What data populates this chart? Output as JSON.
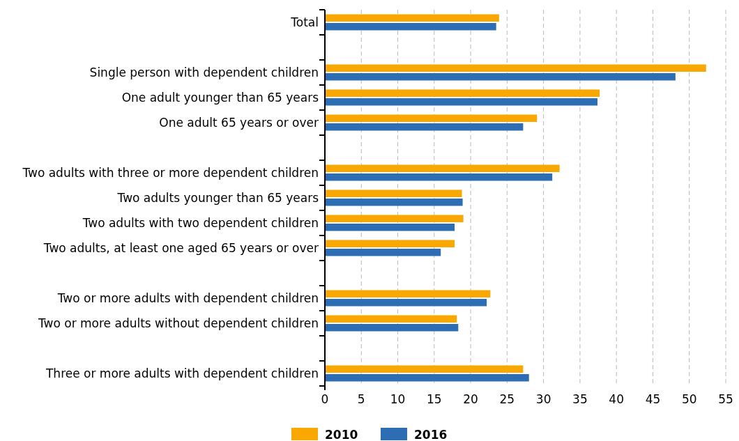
{
  "chart_data": {
    "type": "bar",
    "orientation": "horizontal",
    "categories": [
      "Total",
      null,
      "Single person with dependent children",
      "One adult younger than 65 years",
      "One adult 65 years or over",
      null,
      "Two adults with three or more dependent children",
      "Two adults younger than 65 years",
      "Two adults with two dependent children",
      "Two adults, at least one aged 65 years or over",
      null,
      "Two or more adults with dependent children",
      "Two or more adults without dependent children",
      null,
      "Three or more adults with dependent children"
    ],
    "series": [
      {
        "name": "2010",
        "color": "#f8a800",
        "values": [
          23.9,
          null,
          52.3,
          37.7,
          29.1,
          null,
          32.2,
          18.8,
          19.0,
          17.8,
          null,
          22.7,
          18.1,
          null,
          27.2
        ]
      },
      {
        "name": "2016",
        "color": "#2d6db4",
        "values": [
          23.5,
          null,
          48.1,
          37.4,
          27.2,
          null,
          31.2,
          18.9,
          17.8,
          15.9,
          null,
          22.2,
          18.3,
          null,
          28.0
        ]
      }
    ],
    "xlim": [
      0,
      55
    ],
    "xticks": [
      0,
      5,
      10,
      15,
      20,
      25,
      30,
      35,
      40,
      45,
      50,
      55
    ],
    "grid": "x",
    "legend": "bottom"
  }
}
